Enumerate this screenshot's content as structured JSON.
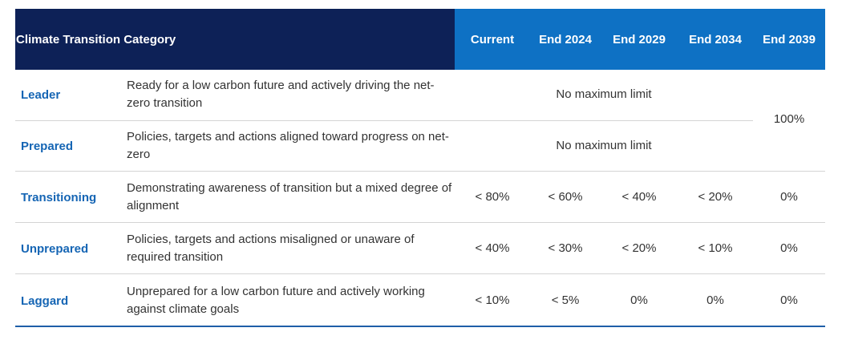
{
  "header": {
    "category": "Climate Transition Category",
    "columns": [
      "Current",
      "End 2024",
      "End 2029",
      "End 2034",
      "End 2039"
    ]
  },
  "rows": [
    {
      "category": "Leader",
      "description": "Ready for a low carbon future and actively driving the net-zero transition",
      "span_value": "No maximum limit"
    },
    {
      "category": "Prepared",
      "description": "Policies, targets and actions aligned toward progress on net-zero",
      "span_value": "No maximum limit"
    },
    {
      "category": "Transitioning",
      "description": "Demonstrating awareness of transition but a mixed degree of alignment",
      "values": [
        "< 80%",
        "< 60%",
        "< 40%",
        "< 20%",
        "0%"
      ]
    },
    {
      "category": "Unprepared",
      "description": "Policies, targets and actions misaligned or unaware of required transition",
      "values": [
        "< 40%",
        "< 30%",
        "< 20%",
        "< 10%",
        "0%"
      ]
    },
    {
      "category": "Laggard",
      "description": "Unprepared for a low carbon future and actively working against climate goals",
      "values": [
        "< 10%",
        "< 5%",
        "0%",
        "0%",
        "0%"
      ]
    }
  ],
  "merged_end_2039_leader_prepared": "100%",
  "colors": {
    "header_dark": "#0d2157",
    "header_blue": "#0e71c4",
    "category_text": "#1565b4",
    "bottom_rule": "#1f5fa8"
  }
}
